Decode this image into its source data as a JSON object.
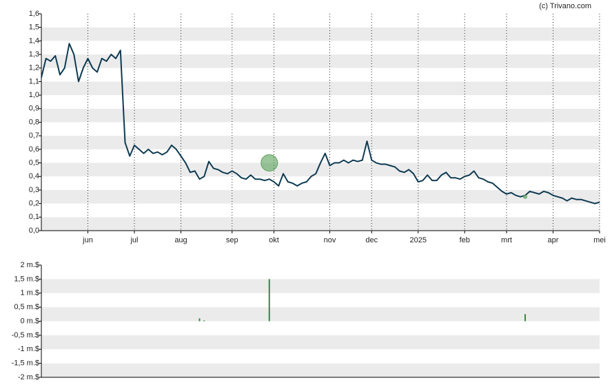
{
  "chart_data": [
    {
      "type": "line",
      "credit": "(c) Trivano.com",
      "grid": "bands",
      "categories": [
        null,
        null,
        null,
        null,
        null,
        null,
        null,
        null,
        null,
        null,
        "jun",
        null,
        null,
        null,
        null,
        null,
        null,
        null,
        null,
        null,
        "jul",
        null,
        null,
        null,
        null,
        null,
        null,
        null,
        null,
        null,
        "aug",
        null,
        null,
        null,
        null,
        null,
        null,
        null,
        null,
        null,
        null,
        "sep",
        null,
        null,
        null,
        null,
        null,
        null,
        null,
        null,
        "okt",
        null,
        null,
        null,
        null,
        null,
        null,
        null,
        null,
        null,
        null,
        null,
        "nov",
        null,
        null,
        null,
        null,
        null,
        null,
        null,
        null,
        "dec",
        null,
        null,
        null,
        null,
        null,
        null,
        null,
        null,
        null,
        "2025",
        null,
        null,
        null,
        null,
        null,
        null,
        null,
        null,
        null,
        "feb",
        null,
        null,
        null,
        null,
        null,
        null,
        null,
        null,
        "mrt",
        null,
        null,
        null,
        null,
        null,
        null,
        null,
        null,
        null,
        "apr",
        null,
        null,
        null,
        null,
        null,
        null,
        null,
        null,
        null,
        "mei"
      ],
      "series": [
        {
          "color": "#0d3a52",
          "values": [
            1.13,
            1.27,
            1.25,
            1.29,
            1.15,
            1.2,
            1.38,
            1.3,
            1.1,
            1.2,
            1.27,
            1.2,
            1.17,
            1.27,
            1.25,
            1.3,
            1.27,
            1.33,
            0.65,
            0.55,
            0.63,
            0.6,
            0.57,
            0.6,
            0.57,
            0.58,
            0.56,
            0.58,
            0.63,
            0.6,
            0.55,
            0.5,
            0.43,
            0.44,
            0.38,
            0.4,
            0.51,
            0.46,
            0.45,
            0.43,
            0.42,
            0.44,
            0.42,
            0.39,
            0.38,
            0.41,
            0.38,
            0.38,
            0.37,
            0.38,
            0.36,
            0.33,
            0.42,
            0.36,
            0.35,
            0.33,
            0.35,
            0.36,
            0.4,
            0.42,
            0.5,
            0.57,
            0.48,
            0.5,
            0.5,
            0.52,
            0.5,
            0.52,
            0.51,
            0.52,
            0.66,
            0.52,
            0.5,
            0.49,
            0.49,
            0.48,
            0.47,
            0.44,
            0.43,
            0.45,
            0.42,
            0.36,
            0.37,
            0.41,
            0.37,
            0.37,
            0.41,
            0.43,
            0.39,
            0.39,
            0.38,
            0.4,
            0.41,
            0.44,
            0.39,
            0.38,
            0.36,
            0.35,
            0.32,
            0.29,
            0.27,
            0.28,
            0.26,
            0.25,
            0.26,
            0.29,
            0.28,
            0.27,
            0.29,
            0.28,
            0.26,
            0.25,
            0.24,
            0.22,
            0.24,
            0.23,
            0.23,
            0.22,
            0.21,
            0.2,
            0.21
          ]
        },
        {
          "color": "#5aa05a",
          "values": [
            null,
            null,
            null,
            null,
            null,
            null,
            null,
            null,
            null,
            null,
            null,
            null,
            null,
            null,
            null,
            null,
            null,
            null,
            null,
            null,
            null,
            null,
            null,
            null,
            null,
            null,
            null,
            null,
            null,
            null,
            null,
            null,
            null,
            null,
            null,
            null,
            null,
            null,
            null,
            null,
            null,
            null,
            null,
            null,
            null,
            null,
            null,
            null,
            null,
            0.5,
            null,
            null,
            null,
            null,
            null,
            null,
            null,
            null,
            null,
            null,
            null,
            null,
            null,
            null,
            null,
            null,
            null,
            null,
            null,
            null,
            null,
            null,
            null,
            null,
            null,
            null,
            null,
            null,
            null,
            null,
            null,
            null,
            null,
            null,
            null,
            null,
            null,
            null,
            null,
            null,
            null,
            null,
            null,
            null,
            null,
            null,
            null,
            null,
            null,
            null,
            null,
            null,
            null,
            null,
            0.25,
            null,
            null,
            null,
            null,
            null,
            null,
            null,
            null,
            null,
            null,
            null,
            null,
            null,
            null,
            null,
            null
          ],
          "sizes": [
            null,
            null,
            null,
            null,
            null,
            null,
            null,
            null,
            null,
            null,
            null,
            null,
            null,
            null,
            null,
            null,
            null,
            null,
            null,
            null,
            null,
            null,
            null,
            null,
            null,
            null,
            null,
            null,
            null,
            null,
            null,
            null,
            null,
            null,
            null,
            null,
            null,
            null,
            null,
            null,
            null,
            null,
            null,
            null,
            null,
            null,
            null,
            null,
            null,
            12,
            null,
            null,
            null,
            null,
            null,
            null,
            null,
            null,
            null,
            null,
            null,
            null,
            null,
            null,
            null,
            null,
            null,
            null,
            null,
            null,
            null,
            null,
            null,
            null,
            null,
            null,
            null,
            null,
            null,
            null,
            null,
            null,
            null,
            null,
            null,
            null,
            null,
            null,
            null,
            null,
            null,
            null,
            null,
            null,
            null,
            null,
            null,
            null,
            null,
            null,
            null,
            null,
            null,
            null,
            2.5,
            null,
            null,
            null,
            null,
            null,
            null,
            null,
            null,
            null,
            null,
            null,
            null,
            null,
            null,
            null,
            null
          ]
        }
      ],
      "ylim": [
        0,
        1.6
      ],
      "yticks": [
        {
          "value": 0,
          "label": "0,0"
        },
        {
          "value": 0.1,
          "label": "0,1"
        },
        {
          "value": 0.2,
          "label": "0,2"
        },
        {
          "value": 0.3,
          "label": "0,3"
        },
        {
          "value": 0.4,
          "label": "0,4"
        },
        {
          "value": 0.5,
          "label": "0,5"
        },
        {
          "value": 0.6,
          "label": "0,6"
        },
        {
          "value": 0.7,
          "label": "0,7"
        },
        {
          "value": 0.8,
          "label": "0,8"
        },
        {
          "value": 0.9,
          "label": "0,9"
        },
        {
          "value": 1,
          "label": "1,0"
        },
        {
          "value": 1.1,
          "label": "1,1"
        },
        {
          "value": 1.2,
          "label": "1,2"
        },
        {
          "value": 1.3,
          "label": "1,3"
        },
        {
          "value": 1.4,
          "label": "1,4"
        },
        {
          "value": 1.5,
          "label": "1,5"
        },
        {
          "value": 1.6,
          "label": "1,6"
        }
      ]
    },
    {
      "type": "bar",
      "color": "#2e8b3e",
      "grid": "bands",
      "values": [
        null,
        null,
        null,
        null,
        null,
        null,
        null,
        null,
        null,
        null,
        null,
        null,
        null,
        null,
        null,
        null,
        null,
        null,
        null,
        null,
        null,
        null,
        null,
        null,
        null,
        null,
        null,
        null,
        null,
        null,
        null,
        null,
        null,
        null,
        0.1,
        0.03,
        null,
        null,
        null,
        null,
        null,
        null,
        null,
        null,
        null,
        null,
        null,
        null,
        null,
        1.5,
        null,
        null,
        null,
        null,
        null,
        null,
        null,
        null,
        null,
        null,
        null,
        null,
        null,
        null,
        null,
        null,
        null,
        null,
        null,
        null,
        null,
        null,
        null,
        null,
        null,
        null,
        null,
        null,
        null,
        null,
        null,
        null,
        null,
        null,
        null,
        null,
        null,
        null,
        null,
        null,
        null,
        null,
        null,
        null,
        null,
        null,
        null,
        null,
        null,
        null,
        null,
        null,
        null,
        null,
        0.25,
        null,
        null,
        null,
        null,
        null,
        null,
        null,
        null,
        null,
        null,
        null,
        null,
        null,
        null,
        null,
        null
      ],
      "ylim": [
        -2,
        2
      ],
      "yticks": [
        {
          "value": -2,
          "label": "-2 m.$"
        },
        {
          "value": -1.5,
          "label": "-1,5 m.$"
        },
        {
          "value": -1,
          "label": "-1 m.$"
        },
        {
          "value": -0.5,
          "label": "-0,5 m.$"
        },
        {
          "value": 0,
          "label": "0 m.$"
        },
        {
          "value": 0.5,
          "label": "0,5 m.$"
        },
        {
          "value": 1,
          "label": "1 m.$"
        },
        {
          "value": 1.5,
          "label": "1,5 m.$"
        },
        {
          "value": 2,
          "label": "2 m.$"
        }
      ]
    }
  ]
}
